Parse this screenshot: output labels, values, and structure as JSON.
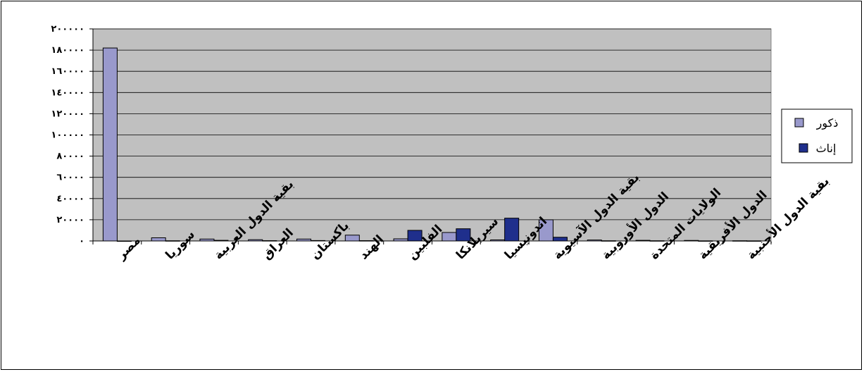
{
  "chart_data": {
    "type": "bar",
    "categories": [
      "مصر",
      "سوريا",
      "بقية الدول العربية",
      "العراق",
      "باكستان",
      "الهند",
      "الفلبين",
      "سيريلانكا",
      "اندونيسيا",
      "بقية الدول الآسيوية",
      "الدول الأوروبية",
      "الولايات المتحدة",
      "الدول الأفريقية",
      "بقية الدول الأجنبية"
    ],
    "series": [
      {
        "name": "ذكور",
        "color": "#9999cc",
        "values": [
          182000,
          3000,
          1800,
          1200,
          1800,
          5500,
          2000,
          8000,
          1000,
          20000,
          900,
          600,
          500,
          200
        ]
      },
      {
        "name": "إناث",
        "color": "#1f2f8c",
        "values": [
          0,
          200,
          600,
          300,
          400,
          300,
          10000,
          11500,
          21500,
          3500,
          200,
          200,
          100,
          100
        ]
      }
    ],
    "ylim": [
      0,
      200000
    ],
    "yticks": [
      0,
      20000,
      40000,
      60000,
      80000,
      100000,
      120000,
      140000,
      160000,
      180000,
      200000
    ],
    "ytick_labels": [
      "٠",
      "٢٠٠٠٠",
      "٤٠٠٠٠",
      "٦٠٠٠٠",
      "٨٠٠٠٠",
      "١٠٠٠٠٠",
      "١٢٠٠٠٠",
      "١٤٠٠٠٠",
      "١٦٠٠٠٠",
      "١٨٠٠٠٠",
      "٢٠٠٠٠٠"
    ],
    "grid": true,
    "plot_background": "#c0c0c0",
    "legend_position": "right"
  }
}
